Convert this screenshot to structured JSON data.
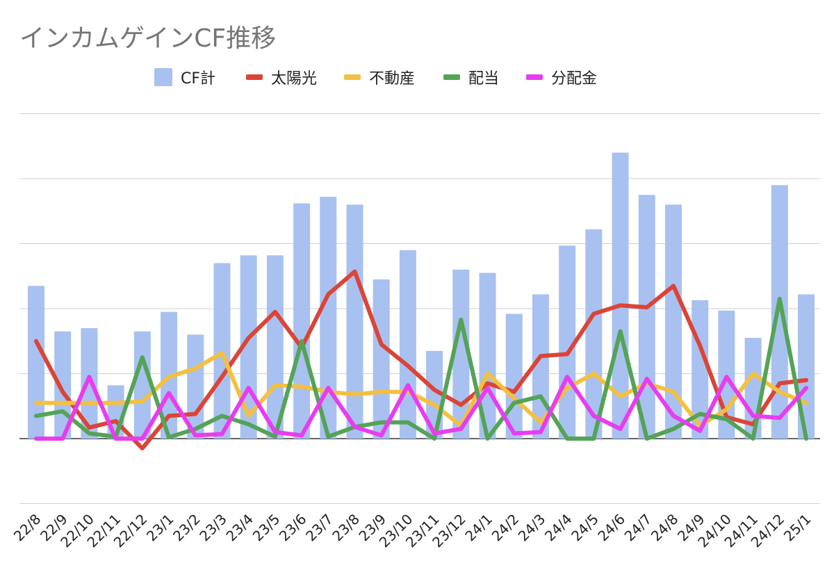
{
  "chart_data": {
    "type": "bar",
    "title": "インカムゲインCF推移",
    "categories": [
      "22/8",
      "22/9",
      "22/10",
      "22/11",
      "22/12",
      "23/1",
      "23/2",
      "23/3",
      "23/4",
      "23/5",
      "23/6",
      "23/7",
      "23/8",
      "23/9",
      "23/10",
      "23/11",
      "23/12",
      "24/1",
      "24/2",
      "24/3",
      "24/4",
      "24/5",
      "24/6",
      "24/7",
      "24/8",
      "24/9",
      "24/10",
      "24/11",
      "24/12",
      "25/1"
    ],
    "ylim": [
      -1,
      5
    ],
    "gridlines": [
      -1,
      0,
      1,
      2,
      3,
      4,
      5
    ],
    "grid": true,
    "legend": "top",
    "series": [
      {
        "name": "CF計",
        "type": "bar",
        "color": "#a8c1f0",
        "values": [
          2.35,
          1.65,
          1.7,
          0.82,
          1.65,
          1.95,
          1.6,
          2.7,
          2.82,
          2.82,
          3.62,
          3.72,
          3.6,
          2.45,
          2.9,
          1.35,
          2.6,
          2.55,
          1.92,
          2.22,
          2.97,
          3.22,
          4.4,
          3.75,
          3.6,
          2.13,
          1.97,
          1.55,
          3.9,
          2.22
        ]
      },
      {
        "name": "太陽光",
        "type": "line",
        "color": "#db4437",
        "values": [
          1.5,
          0.72,
          0.17,
          0.27,
          -0.15,
          0.35,
          0.38,
          0.95,
          1.55,
          1.95,
          1.4,
          2.22,
          2.57,
          1.45,
          1.12,
          0.75,
          0.52,
          0.85,
          0.72,
          1.27,
          1.3,
          1.92,
          2.05,
          2.02,
          2.35,
          1.43,
          0.33,
          0.22,
          0.85,
          0.9
        ]
      },
      {
        "name": "不動産",
        "type": "line",
        "color": "#f4c040",
        "values": [
          0.55,
          0.55,
          0.55,
          0.55,
          0.57,
          0.95,
          1.08,
          1.32,
          0.35,
          0.82,
          0.8,
          0.72,
          0.68,
          0.72,
          0.72,
          0.52,
          0.2,
          1.0,
          0.62,
          0.25,
          0.78,
          1.0,
          0.65,
          0.85,
          0.72,
          0.2,
          0.45,
          1.0,
          0.72,
          0.55
        ]
      },
      {
        "name": "配当",
        "type": "line",
        "color": "#54a357",
        "values": [
          0.35,
          0.42,
          0.08,
          0.03,
          1.25,
          0.02,
          0.15,
          0.35,
          0.22,
          0.03,
          1.5,
          0.03,
          0.18,
          0.25,
          0.25,
          0.0,
          1.83,
          0.0,
          0.55,
          0.65,
          0.0,
          0.0,
          1.65,
          0.0,
          0.15,
          0.38,
          0.3,
          0.0,
          2.15,
          0.0
        ]
      },
      {
        "name": "分配金",
        "type": "line",
        "color": "#e83cf0",
        "values": [
          0.0,
          0.0,
          0.95,
          0.0,
          0.0,
          0.7,
          0.05,
          0.07,
          0.78,
          0.1,
          0.05,
          0.78,
          0.18,
          0.05,
          0.82,
          0.08,
          0.15,
          0.78,
          0.08,
          0.1,
          0.95,
          0.35,
          0.15,
          0.92,
          0.35,
          0.12,
          0.95,
          0.35,
          0.32,
          0.78
        ]
      }
    ]
  }
}
